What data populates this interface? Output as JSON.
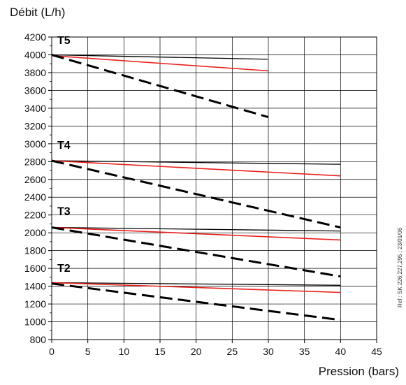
{
  "chart_data": {
    "type": "line",
    "ylabel": "Débit (L/h)",
    "xlabel": "Pression (bars)",
    "xlim": [
      0,
      45
    ],
    "ylim": [
      800,
      4200
    ],
    "x_ticks": [
      "0",
      "5",
      "10",
      "15",
      "20",
      "25",
      "30",
      "35",
      "40",
      "45"
    ],
    "y_ticks": [
      "800",
      "1000",
      "1200",
      "1400",
      "1600",
      "1800",
      "2000",
      "2200",
      "2400",
      "2600",
      "2800",
      "3000",
      "3200",
      "3400",
      "3600",
      "3800",
      "4000",
      "4200"
    ],
    "grid": true,
    "groups": [
      {
        "label": "T5",
        "label_y": 4170,
        "series": [
          {
            "style": "solid-black",
            "x": [
              0,
              30
            ],
            "y": [
              4000,
              3950
            ]
          },
          {
            "style": "solid-red",
            "x": [
              0,
              30
            ],
            "y": [
              3990,
              3820
            ]
          },
          {
            "style": "dashed-black",
            "x": [
              0,
              30
            ],
            "y": [
              4000,
              3300
            ]
          }
        ]
      },
      {
        "label": "T4",
        "label_y": 2990,
        "series": [
          {
            "style": "solid-black",
            "x": [
              0,
              40
            ],
            "y": [
              2810,
              2770
            ]
          },
          {
            "style": "solid-red",
            "x": [
              0,
              40
            ],
            "y": [
              2810,
              2640
            ]
          },
          {
            "style": "dashed-black",
            "x": [
              0,
              40
            ],
            "y": [
              2810,
              2060
            ]
          }
        ]
      },
      {
        "label": "T3",
        "label_y": 2250,
        "series": [
          {
            "style": "solid-black",
            "x": [
              0,
              40
            ],
            "y": [
              2060,
              2020
            ]
          },
          {
            "style": "solid-red",
            "x": [
              0,
              40
            ],
            "y": [
              2060,
              1920
            ]
          },
          {
            "style": "dashed-black",
            "x": [
              0,
              40
            ],
            "y": [
              2060,
              1510
            ]
          }
        ]
      },
      {
        "label": "T2",
        "label_y": 1610,
        "series": [
          {
            "style": "solid-black",
            "x": [
              0,
              40
            ],
            "y": [
              1440,
              1410
            ]
          },
          {
            "style": "solid-red",
            "x": [
              0,
              40
            ],
            "y": [
              1440,
              1330
            ]
          },
          {
            "style": "dashed-black",
            "x": [
              0,
              40
            ],
            "y": [
              1430,
              1020
            ]
          }
        ]
      }
    ],
    "colors": {
      "solid-black": "#000000",
      "solid-red": "#e8201c",
      "dashed-black": "#000000",
      "grid": "#000000"
    }
  },
  "reference_note": "Ref : SK 226,227,295 ; 23/01/06"
}
